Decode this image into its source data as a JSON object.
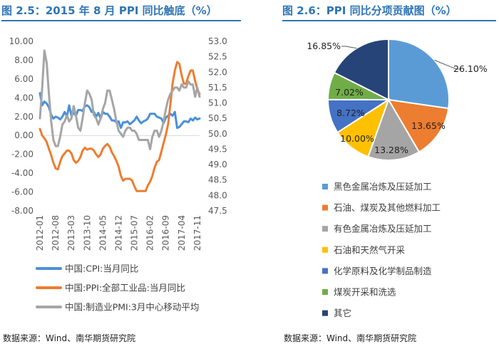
{
  "source_left": "数据来源：Wind、南华期货研究院",
  "source_right": "数据来源：Wind、南华期货研究院",
  "chart_data": [
    {
      "type": "line",
      "title": "图 2.5：2015 年 8 月 PPI 同比触底（%）",
      "y_left_ticks": [
        "10.00",
        "8.00",
        "6.00",
        "4.00",
        "2.00",
        "0.00",
        "-2.00",
        "-4.00",
        "-6.00",
        "-8.00"
      ],
      "y_left_range": [
        -8,
        10
      ],
      "y_right_ticks": [
        "53.0",
        "52.5",
        "52.0",
        "51.5",
        "51.0",
        "50.5",
        "50.0",
        "49.5",
        "49.0",
        "48.5",
        "48.0",
        "47.5"
      ],
      "y_right_range": [
        47.5,
        53.0
      ],
      "x_ticks": [
        "2012-01",
        "2012-08",
        "2013-03",
        "2013-10",
        "2014-05",
        "2014-12",
        "2015-07",
        "2016-02",
        "2016-09",
        "2017-04",
        "2017-11"
      ],
      "x_range": [
        0,
        71
      ],
      "colors": [
        "#4a90d9",
        "#ed7d31",
        "#a5a5a5"
      ],
      "series": [
        {
          "name": "中国:CPI:当月同比",
          "axis": "left",
          "values": [
            4.5,
            3.2,
            3.6,
            3.4,
            3.0,
            2.2,
            1.8,
            2.0,
            1.9,
            1.7,
            2.0,
            2.5,
            2.0,
            3.2,
            2.1,
            2.4,
            2.1,
            2.7,
            2.7,
            2.6,
            3.1,
            3.2,
            3.0,
            2.5,
            2.5,
            2.0,
            2.4,
            1.8,
            2.5,
            2.3,
            2.3,
            2.0,
            1.6,
            1.6,
            1.4,
            1.5,
            0.8,
            1.4,
            1.4,
            1.5,
            1.2,
            1.4,
            1.6,
            2.0,
            1.6,
            1.3,
            1.5,
            1.6,
            1.8,
            2.3,
            2.3,
            2.3,
            2.0,
            1.9,
            1.8,
            1.3,
            1.9,
            2.1,
            2.3,
            2.1,
            2.5,
            0.8,
            0.9,
            1.2,
            1.5,
            1.5,
            1.4,
            1.8,
            1.6,
            1.9,
            1.7,
            1.8
          ]
        },
        {
          "name": "中国:PPI:全部工业品:当月同比",
          "axis": "left",
          "values": [
            0.7,
            0.0,
            -0.3,
            -0.7,
            -1.4,
            -2.1,
            -2.9,
            -3.5,
            -3.6,
            -2.8,
            -2.2,
            -1.9,
            -1.6,
            -1.6,
            -1.9,
            -2.6,
            -2.9,
            -2.7,
            -2.3,
            -1.6,
            -1.3,
            -1.5,
            -1.4,
            -1.4,
            -1.6,
            -2.0,
            -2.3,
            -2.0,
            -1.4,
            -1.1,
            -0.9,
            -1.2,
            -1.8,
            -2.2,
            -2.7,
            -3.3,
            -4.3,
            -4.8,
            -4.6,
            -4.6,
            -4.6,
            -4.8,
            -5.4,
            -5.9,
            -5.9,
            -5.9,
            -5.9,
            -5.9,
            -5.3,
            -4.9,
            -4.3,
            -3.4,
            -2.8,
            -2.6,
            -1.7,
            -0.8,
            0.1,
            1.2,
            3.3,
            5.5,
            6.9,
            7.8,
            7.6,
            6.4,
            5.5,
            5.5,
            6.3,
            6.9,
            6.9,
            5.8,
            4.9,
            4.4
          ]
        },
        {
          "name": "中国:制造业PMI:3月中心移动平均",
          "axis": "right",
          "values": [
            50.5,
            51.5,
            52.7,
            52.3,
            51.3,
            50.4,
            49.8,
            49.6,
            49.6,
            49.9,
            50.3,
            50.4,
            50.6,
            50.4,
            50.5,
            50.9,
            50.6,
            50.2,
            50.1,
            50.5,
            51.0,
            51.4,
            51.3,
            51.1,
            50.6,
            50.5,
            50.3,
            50.5,
            50.8,
            51.0,
            51.4,
            51.4,
            51.1,
            50.8,
            50.4,
            50.1,
            50.0,
            49.9,
            50.1,
            50.2,
            50.2,
            50.1,
            50.1,
            50.0,
            49.8,
            49.8,
            49.8,
            49.8,
            49.8,
            49.5,
            49.9,
            50.1,
            50.1,
            49.9,
            50.1,
            50.4,
            50.8,
            51.1,
            51.3,
            51.4,
            51.5,
            51.5,
            51.4,
            51.6,
            51.5,
            51.5,
            51.7,
            51.6,
            51.6,
            51.2,
            51.5,
            51.2
          ]
        }
      ]
    },
    {
      "type": "pie",
      "title": "图 2.6：PPI 同比分项贡献图（%）",
      "slices": [
        {
          "name": "黑色金属冶炼及压延加工",
          "value": 26.1,
          "label": "26.10%",
          "color": "#5b9bd5"
        },
        {
          "name": "石油、煤炭及其他燃料加工",
          "value": 13.65,
          "label": "13.65%",
          "color": "#ed7d31"
        },
        {
          "name": "有色金属冶炼及压延加工",
          "value": 13.28,
          "label": "13.28%",
          "color": "#a5a5a5"
        },
        {
          "name": "石油和天然气开采",
          "value": 10.0,
          "label": "10.00%",
          "color": "#ffc000"
        },
        {
          "name": "化学原料及化学制品制造",
          "value": 8.72,
          "label": "8.72%",
          "color": "#4472c4"
        },
        {
          "name": "煤炭开采和洗选",
          "value": 7.02,
          "label": "7.02%",
          "color": "#70ad47"
        },
        {
          "name": "其它",
          "value": 16.85,
          "label": "16.85%",
          "color": "#264478"
        }
      ]
    }
  ]
}
